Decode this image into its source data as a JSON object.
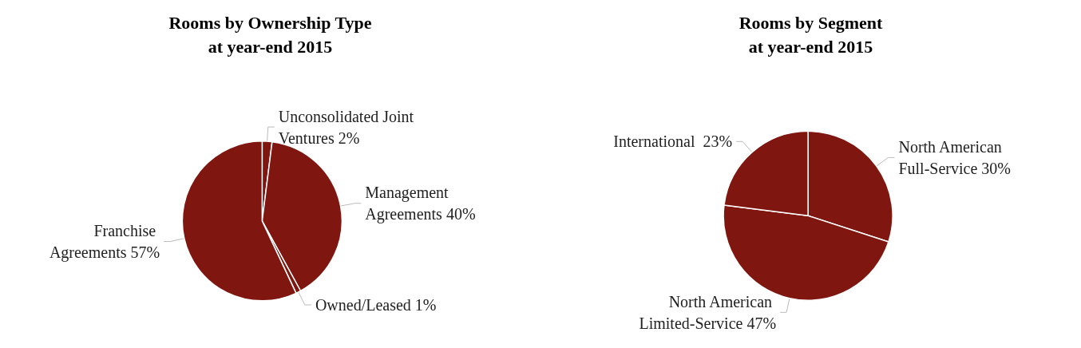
{
  "chart_data": [
    {
      "type": "pie",
      "title": "Rooms by Ownership Type\nat year-end 2015",
      "categories": [
        "Unconsolidated Joint Ventures",
        "Management Agreements",
        "Owned/Leased",
        "Franchise Agreements"
      ],
      "values": [
        2,
        40,
        1,
        57
      ],
      "value_labels": [
        "2%",
        "40%",
        "1%",
        "57%"
      ],
      "colors": [
        "#7f1710",
        "#7f1710",
        "#7f1710",
        "#7f1710"
      ],
      "legend": false
    },
    {
      "type": "pie",
      "title": "Rooms by Segment\nat year-end 2015",
      "categories": [
        "North American Full-Service",
        "North American Limited-Service",
        "International "
      ],
      "values": [
        30,
        47,
        23
      ],
      "value_labels": [
        "30%",
        "47%",
        "23%"
      ],
      "colors": [
        "#7f1710",
        "#7f1710",
        "#7f1710"
      ],
      "legend": false
    }
  ]
}
